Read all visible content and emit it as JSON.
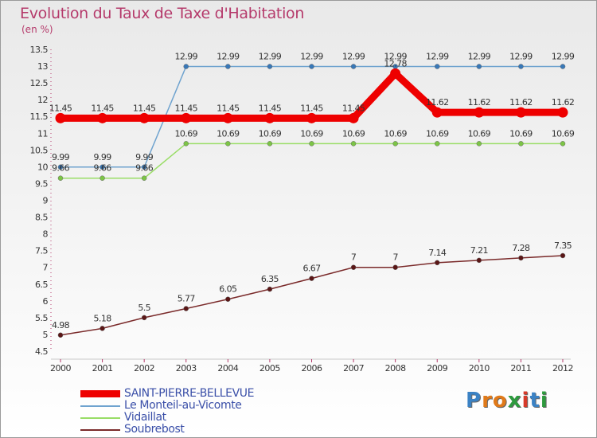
{
  "header": {
    "title": "Evolution du Taux de Taxe d'Habitation",
    "subtitle": "(en %)"
  },
  "brand": {
    "letters": [
      "P",
      "r",
      "o",
      "x",
      "i",
      "t",
      "i"
    ],
    "colors": [
      "#3b82c4",
      "#e07a1a",
      "#e07a1a",
      "#2e9a3e",
      "#d63a2a",
      "#3b82c4",
      "#2e9a3e"
    ]
  },
  "chart_data": {
    "type": "line",
    "x": [
      "2000",
      "2001",
      "2002",
      "2003",
      "2004",
      "2005",
      "2006",
      "2007",
      "2008",
      "2009",
      "2010",
      "2011",
      "2012"
    ],
    "ylim": [
      4.5,
      13.5
    ],
    "yticks": [
      "4.5",
      "5",
      "5.5",
      "6",
      "6.5",
      "7",
      "7.5",
      "8",
      "8.5",
      "9",
      "9.5",
      "10",
      "10.5",
      "11",
      "11.5",
      "12",
      "12.5",
      "13",
      "13.5"
    ],
    "grid": false,
    "legend_position": "bottom-left",
    "series": [
      {
        "name": "SAINT-PIERRE-BELLEVUE",
        "color": "#ee0000",
        "bold": true,
        "values": [
          11.45,
          11.45,
          11.45,
          11.45,
          11.45,
          11.45,
          11.45,
          11.45,
          12.78,
          11.62,
          11.62,
          11.62,
          11.62
        ],
        "labels": [
          "11.45",
          "11.45",
          "11.45",
          "11.45",
          "11.45",
          "11.45",
          "11.45",
          "11.45",
          "12.78",
          "11.62",
          "11.62",
          "11.62",
          "11.62"
        ]
      },
      {
        "name": "Le Monteil-au-Vicomte",
        "color": "#6fa3cf",
        "bold": false,
        "values": [
          9.99,
          9.99,
          9.99,
          12.99,
          12.99,
          12.99,
          12.99,
          12.99,
          12.99,
          12.99,
          12.99,
          12.99,
          12.99
        ],
        "labels": [
          "9.99",
          "9.99",
          "9.99",
          "12.99",
          "12.99",
          "12.99",
          "12.99",
          "12.99",
          "12.99",
          "12.99",
          "12.99",
          "12.99",
          "12.99"
        ]
      },
      {
        "name": "Vidaillat",
        "color": "#99dd66",
        "bold": false,
        "values": [
          9.66,
          9.66,
          9.66,
          10.69,
          10.69,
          10.69,
          10.69,
          10.69,
          10.69,
          10.69,
          10.69,
          10.69,
          10.69
        ],
        "labels": [
          "9.66",
          "9.66",
          "9.66",
          "10.69",
          "10.69",
          "10.69",
          "10.69",
          "10.69",
          "10.69",
          "10.69",
          "10.69",
          "10.69",
          "10.69"
        ]
      },
      {
        "name": "Soubrebost",
        "color": "#7a2a2a",
        "bold": false,
        "values": [
          4.98,
          5.18,
          5.5,
          5.77,
          6.05,
          6.35,
          6.67,
          7,
          7,
          7.14,
          7.21,
          7.28,
          7.35
        ],
        "labels": [
          "4.98",
          "5.18",
          "5.5",
          "5.77",
          "6.05",
          "6.35",
          "6.67",
          "7",
          "7",
          "7.14",
          "7.21",
          "7.28",
          "7.35"
        ]
      }
    ]
  }
}
